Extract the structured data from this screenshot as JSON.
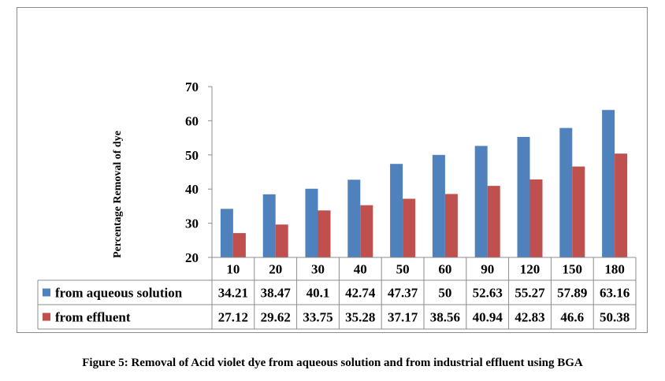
{
  "chart_data": {
    "type": "bar",
    "ylabel": "Percentage Removal of dye",
    "ylim": [
      20,
      70
    ],
    "yticks": [
      20,
      30,
      40,
      50,
      60,
      70
    ],
    "categories": [
      "10",
      "20",
      "30",
      "40",
      "50",
      "60",
      "90",
      "120",
      "150",
      "180"
    ],
    "series": [
      {
        "name": "from aqueous solution",
        "color": "#4f81bd",
        "values": [
          34.21,
          38.47,
          40.1,
          42.74,
          47.37,
          50,
          52.63,
          55.27,
          57.89,
          63.16
        ],
        "labels": [
          "34.21",
          "38.47",
          "40.1",
          "42.74",
          "47.37",
          "50",
          "52.63",
          "55.27",
          "57.89",
          "63.16"
        ]
      },
      {
        "name": "from effluent",
        "color": "#c0504d",
        "values": [
          27.12,
          29.62,
          33.75,
          35.28,
          37.17,
          38.56,
          40.94,
          42.83,
          46.6,
          50.38
        ],
        "labels": [
          "27.12",
          "29.62",
          "33.75",
          "35.28",
          "37.17",
          "38.56",
          "40.94",
          "42.83",
          "46.6",
          "50.38"
        ]
      }
    ],
    "grid": false,
    "legend": "table-below"
  },
  "caption": "Figure 5: Removal of Acid violet dye from aqueous solution and from industrial effluent using BGA"
}
